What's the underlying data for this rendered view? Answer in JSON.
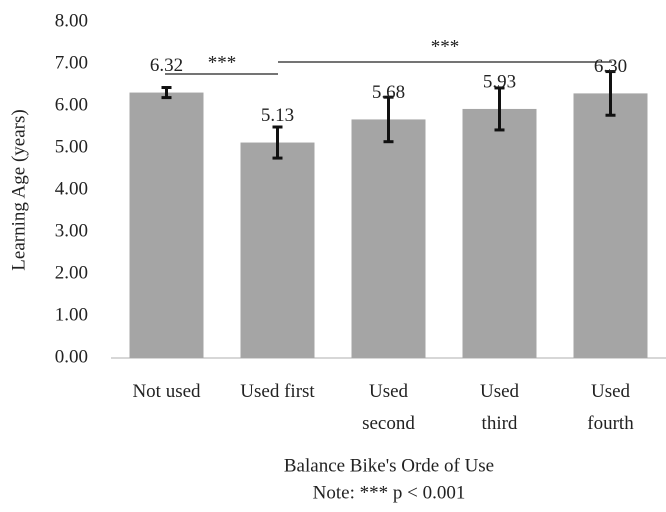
{
  "chart_data": {
    "type": "bar",
    "y_label": "Learning Age (years)",
    "x_label": "Balance Bike's Orde of Use",
    "note": "Note: *** p < 0.001",
    "categories": [
      "Not used",
      "Used first",
      "Used\nsecond",
      "Used\nthird",
      "Used\nfourth"
    ],
    "values": [
      6.32,
      5.13,
      5.68,
      5.93,
      6.3
    ],
    "value_labels": [
      "6.32",
      "5.13",
      "5.68",
      "5.93",
      "6.30"
    ],
    "errors": [
      0.12,
      0.37,
      0.53,
      0.5,
      0.52
    ],
    "color": "#a5a5a5",
    "ylim": [
      0,
      8
    ],
    "yticks": [
      {
        "value": 0,
        "label": "0.00"
      },
      {
        "value": 1,
        "label": "1.00"
      },
      {
        "value": 2,
        "label": "2.00"
      },
      {
        "value": 3,
        "label": "3.00"
      },
      {
        "value": 4,
        "label": "4.00"
      },
      {
        "value": 5,
        "label": "5.00"
      },
      {
        "value": 6,
        "label": "6.00"
      },
      {
        "value": 7,
        "label": "7.00"
      },
      {
        "value": 8,
        "label": "8.00"
      }
    ],
    "annotations": [
      "***",
      "***"
    ]
  }
}
